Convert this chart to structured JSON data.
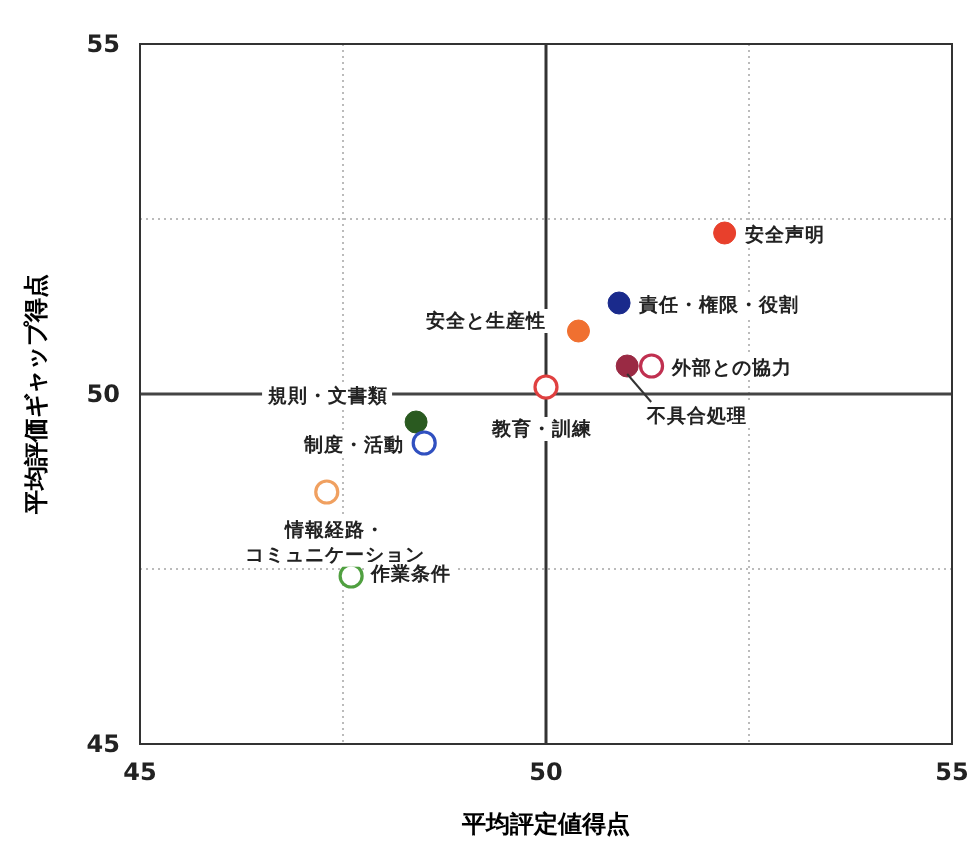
{
  "chart_data": {
    "type": "scatter",
    "xlabel": "平均評定値得点",
    "ylabel": "平均評価ギャップ得点",
    "xlim": [
      45,
      55
    ],
    "ylim": [
      45,
      55
    ],
    "xticks": [
      45,
      {
        "value": 47.5,
        "label": null
      },
      50,
      {
        "value": 52.5,
        "label": null
      },
      55
    ],
    "yticks": [
      45,
      {
        "value": 47.5,
        "label": null
      },
      50,
      {
        "value": 52.5,
        "label": null
      },
      55
    ],
    "grid": true,
    "marker": "circle",
    "ref_lines": [
      {
        "axis": "x",
        "value": 50,
        "color": "#333333"
      },
      {
        "axis": "y",
        "value": 50,
        "color": "#444444"
      }
    ],
    "series": [
      {
        "x": [
          52.2,
          50.9,
          50.4,
          51.0,
          48.4
        ],
        "values": [
          52.3,
          51.3,
          50.9,
          50.4,
          49.6
        ],
        "colors": [
          "#e8402c",
          "#1a2a8c",
          "#f07030",
          "#9a2a44",
          "#2a5a20"
        ]
      },
      {
        "x": [
          51.3,
          50.0,
          48.5,
          47.3,
          47.6
        ],
        "values": [
          50.4,
          50.1,
          49.3,
          48.6,
          47.4
        ],
        "colors": [
          "#c03050",
          "#e04040",
          "#3050c0",
          "#f0a060",
          "#50a040"
        ]
      }
    ],
    "annotations": [
      {
        "text": "安全声明",
        "x": 52.2,
        "y": 52.3
      },
      {
        "text": "責任・権限・役割",
        "x": 50.9,
        "y": 51.3
      },
      {
        "text": "安全と生産性",
        "x": 50.4,
        "y": 50.9
      },
      {
        "text": "不具合処理",
        "x": 51.0,
        "y": 50.4
      },
      {
        "text": "規則・文書類",
        "x": 48.4,
        "y": 49.6
      },
      {
        "text": "外部との協力",
        "x": 51.3,
        "y": 50.4
      },
      {
        "text": "教育・訓練",
        "x": 50.0,
        "y": 50.1
      },
      {
        "text": "制度・活動",
        "x": 48.5,
        "y": 49.3
      },
      {
        "text": "情報経路・コミュニケーション",
        "x": 47.3,
        "y": 48.6
      },
      {
        "text": "作業条件",
        "x": 47.6,
        "y": 47.4
      }
    ]
  }
}
